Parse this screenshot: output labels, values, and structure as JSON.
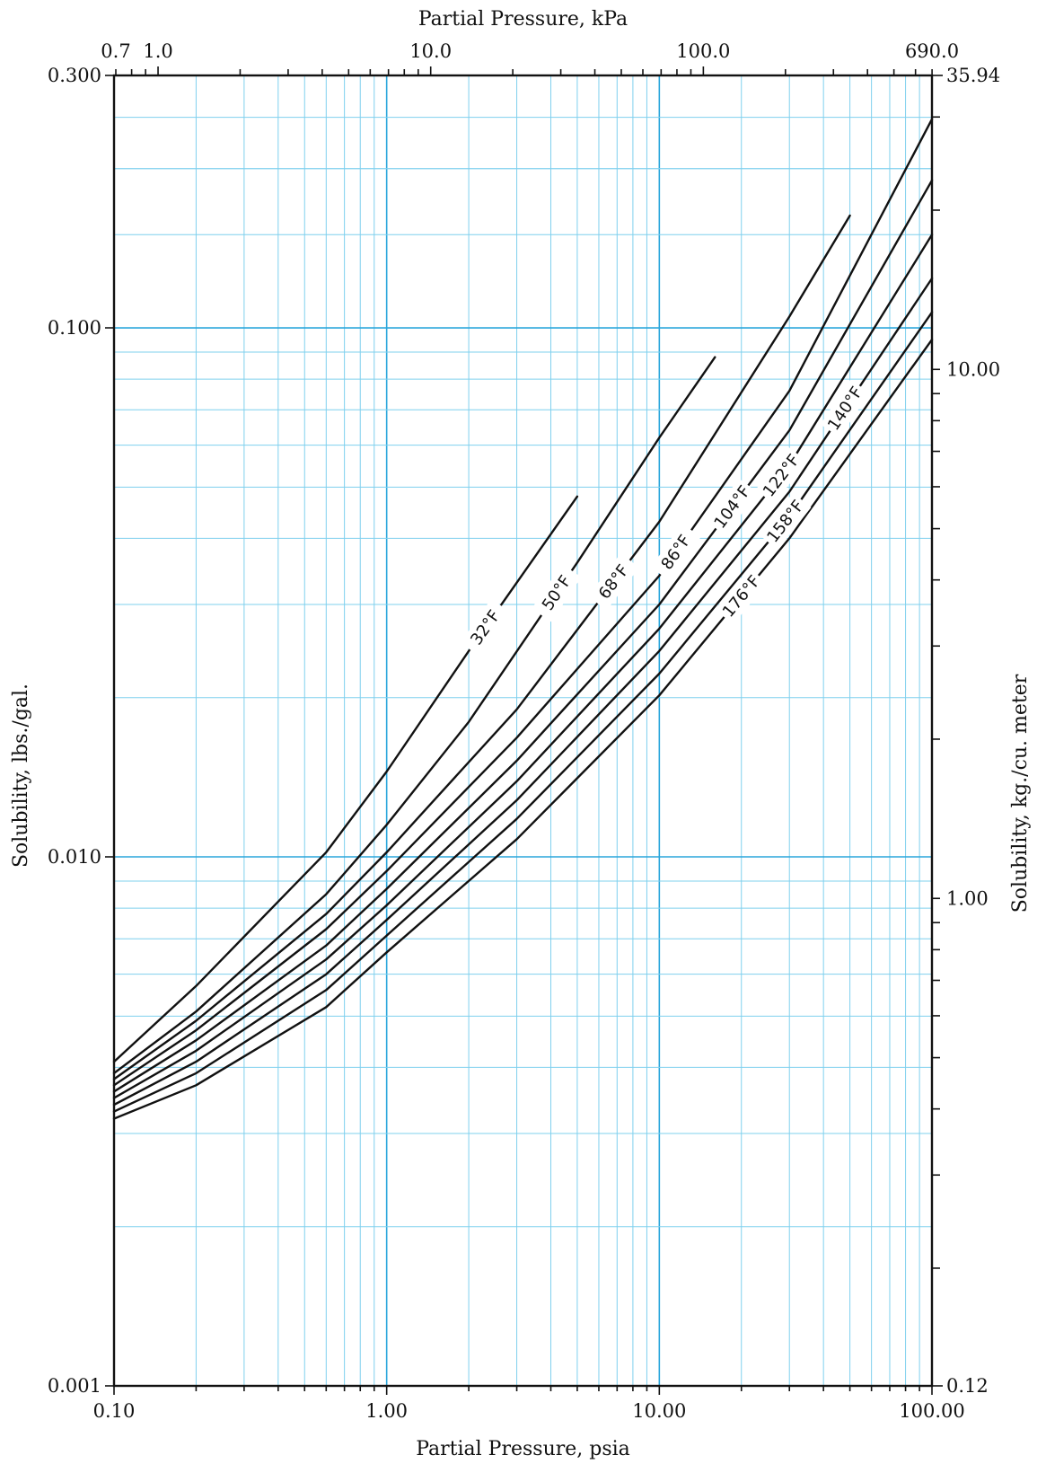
{
  "chart_data": {
    "type": "line",
    "title": "",
    "xlabel": "Partial Pressure, psia",
    "ylabel": "Solubility, lbs./gal.",
    "top_axis_label": "Partial Pressure, kPa",
    "right_axis_label": "Solubility, kg./cu. meter",
    "x_scale": "log",
    "y_scale": "log",
    "xlim": [
      0.1,
      100
    ],
    "ylim": [
      0.001,
      0.3
    ],
    "grid": true,
    "x_tick_labels": [
      {
        "value": 0.1,
        "label": "0.10"
      },
      {
        "value": 1,
        "label": "1.00"
      },
      {
        "value": 10,
        "label": "10.00"
      },
      {
        "value": 100,
        "label": "100.00"
      }
    ],
    "y_tick_labels": [
      {
        "value": 0.001,
        "label": "0.001"
      },
      {
        "value": 0.01,
        "label": "0.010"
      },
      {
        "value": 0.1,
        "label": "0.100"
      },
      {
        "value": 0.3,
        "label": "0.300"
      }
    ],
    "top_tick_labels": [
      {
        "value": 0.7,
        "label": "0.7"
      },
      {
        "value": 1.0,
        "label": "1.0"
      },
      {
        "value": 10.0,
        "label": "10.0"
      },
      {
        "value": 100.0,
        "label": "100.0"
      },
      {
        "value": 690.0,
        "label": "690.0"
      }
    ],
    "right_tick_labels": [
      {
        "value": 0.12,
        "label": "0.12"
      },
      {
        "value": 1.0,
        "label": "1.00"
      },
      {
        "value": 10.0,
        "label": "10.00"
      },
      {
        "value": 35.94,
        "label": "35.94"
      }
    ],
    "series": [
      {
        "name": "32°F",
        "x": [
          0.1,
          0.2,
          0.6,
          1.0,
          2.0,
          5.0
        ],
        "y": [
          0.0041,
          0.0057,
          0.0102,
          0.0145,
          0.0245,
          0.048
        ]
      },
      {
        "name": "50°F",
        "x": [
          0.1,
          0.2,
          0.6,
          1.0,
          2.0,
          5.0,
          10.0,
          16.0
        ],
        "y": [
          0.0039,
          0.0051,
          0.0085,
          0.0115,
          0.018,
          0.036,
          0.062,
          0.088
        ]
      },
      {
        "name": "68°F",
        "x": [
          0.1,
          0.2,
          0.6,
          1.0,
          3.0,
          10.0,
          30.0,
          50.0
        ],
        "y": [
          0.0038,
          0.0049,
          0.0078,
          0.0102,
          0.019,
          0.043,
          0.105,
          0.163
        ]
      },
      {
        "name": "86°F",
        "x": [
          0.1,
          0.2,
          0.6,
          1.0,
          3.0,
          10.0,
          30.0,
          100.0
        ],
        "y": [
          0.0037,
          0.0047,
          0.0073,
          0.0094,
          0.0168,
          0.034,
          0.076,
          0.248
        ]
      },
      {
        "name": "104°F",
        "x": [
          0.1,
          0.2,
          0.6,
          1.0,
          3.0,
          10.0,
          30.0,
          100.0
        ],
        "y": [
          0.0036,
          0.0045,
          0.0068,
          0.0087,
          0.0152,
          0.03,
          0.064,
          0.19
        ]
      },
      {
        "name": "122°F",
        "x": [
          0.1,
          0.2,
          0.6,
          1.0,
          3.0,
          10.0,
          30.0,
          100.0
        ],
        "y": [
          0.0035,
          0.0043,
          0.0064,
          0.0081,
          0.0139,
          0.027,
          0.055,
          0.15
        ]
      },
      {
        "name": "140°F",
        "x": [
          0.1,
          0.2,
          0.6,
          1.0,
          3.0,
          10.0,
          30.0,
          100.0
        ],
        "y": [
          0.0034,
          0.0041,
          0.006,
          0.0076,
          0.0128,
          0.0245,
          0.049,
          0.124
        ]
      },
      {
        "name": "158°F",
        "x": [
          0.1,
          0.2,
          0.6,
          1.0,
          3.0,
          10.0,
          30.0,
          100.0
        ],
        "y": [
          0.0033,
          0.0039,
          0.0056,
          0.0071,
          0.0118,
          0.0222,
          0.044,
          0.107
        ]
      },
      {
        "name": "176°F",
        "x": [
          0.1,
          0.2,
          0.6,
          1.0,
          3.0,
          10.0,
          30.0,
          100.0
        ],
        "y": [
          0.0032,
          0.0037,
          0.0052,
          0.0066,
          0.0108,
          0.0202,
          0.04,
          0.095
        ]
      }
    ]
  }
}
